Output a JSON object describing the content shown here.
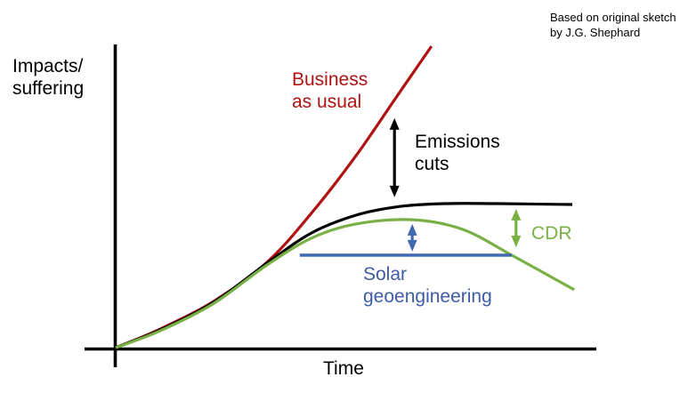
{
  "attribution": {
    "line1": "Based on original sketch",
    "line2": "by J.G. Shephard"
  },
  "labels": {
    "y_axis": {
      "line1": "Impacts/",
      "line2": "suffering"
    },
    "x_axis": "Time",
    "business_as_usual": {
      "line1": "Business",
      "line2": "as usual"
    },
    "emissions_cuts": {
      "line1": "Emissions",
      "line2": "cuts"
    },
    "solar_geoengineering": {
      "line1": "Solar",
      "line2": "geoengineering"
    },
    "cdr": "CDR"
  },
  "colors": {
    "background": "#FFFFFF",
    "axis": "#000000",
    "business_as_usual": "#B01212",
    "emissions_cuts": "#000000",
    "cdr": "#79B045",
    "solar_geoengineering": "#4169B2",
    "solar_text": "#3D5CA8"
  },
  "chart_data": {
    "type": "line",
    "title": "",
    "xlabel": "Time",
    "ylabel": "Impacts/suffering",
    "x_range": [
      0,
      1
    ],
    "y_range": [
      0,
      1
    ],
    "grid": false,
    "tick_labels": "none (conceptual sketch)",
    "legend": "inline colored text labels",
    "series": [
      {
        "name": "business-as-usual",
        "label": "Business as usual",
        "color": "#B01212",
        "width": 3.2,
        "smooth": true,
        "points": [
          [
            0,
            0
          ],
          [
            0.093,
            0.062
          ],
          [
            0.204,
            0.153
          ],
          [
            0.315,
            0.282
          ],
          [
            0.407,
            0.443
          ],
          [
            0.5,
            0.633
          ],
          [
            0.583,
            0.824
          ],
          [
            0.657,
            0.994
          ]
        ]
      },
      {
        "name": "emissions-cuts",
        "label": "Emissions cuts",
        "color": "#000000",
        "width": 3.2,
        "smooth": true,
        "points": [
          [
            0,
            0
          ],
          [
            0.093,
            0.059
          ],
          [
            0.204,
            0.15
          ],
          [
            0.315,
            0.279
          ],
          [
            0.407,
            0.378
          ],
          [
            0.5,
            0.437
          ],
          [
            0.593,
            0.466
          ],
          [
            0.685,
            0.475
          ],
          [
            0.796,
            0.475
          ],
          [
            0.95,
            0.472
          ]
        ]
      },
      {
        "name": "cdr",
        "label": "CDR",
        "color": "#79B045",
        "width": 3.2,
        "smooth": true,
        "points": [
          [
            0,
            0
          ],
          [
            0.093,
            0.056
          ],
          [
            0.204,
            0.146
          ],
          [
            0.315,
            0.273
          ],
          [
            0.407,
            0.361
          ],
          [
            0.5,
            0.408
          ],
          [
            0.617,
            0.422
          ],
          [
            0.722,
            0.39
          ],
          [
            0.824,
            0.305
          ],
          [
            0.954,
            0.191
          ]
        ]
      },
      {
        "name": "solar-geoengineering",
        "label": "Solar geoengineering",
        "color": "#4169B2",
        "width": 3.4,
        "smooth": false,
        "points": [
          [
            0.383,
            0.305
          ],
          [
            0.824,
            0.305
          ]
        ]
      }
    ],
    "annotations": [
      {
        "name": "emissions-cuts-arrow",
        "type": "double_arrow_vertical",
        "x": 0.58,
        "v1": 0.496,
        "v2": 0.757,
        "color": "#000000"
      },
      {
        "name": "solar-geoengineering-arrow",
        "type": "double_arrow_vertical",
        "x": 0.617,
        "v1": 0.317,
        "v2": 0.408,
        "color": "#4169B2"
      },
      {
        "name": "cdr-arrow",
        "type": "double_arrow_vertical",
        "x": 0.833,
        "v1": 0.331,
        "v2": 0.458,
        "color": "#79B045"
      }
    ]
  }
}
